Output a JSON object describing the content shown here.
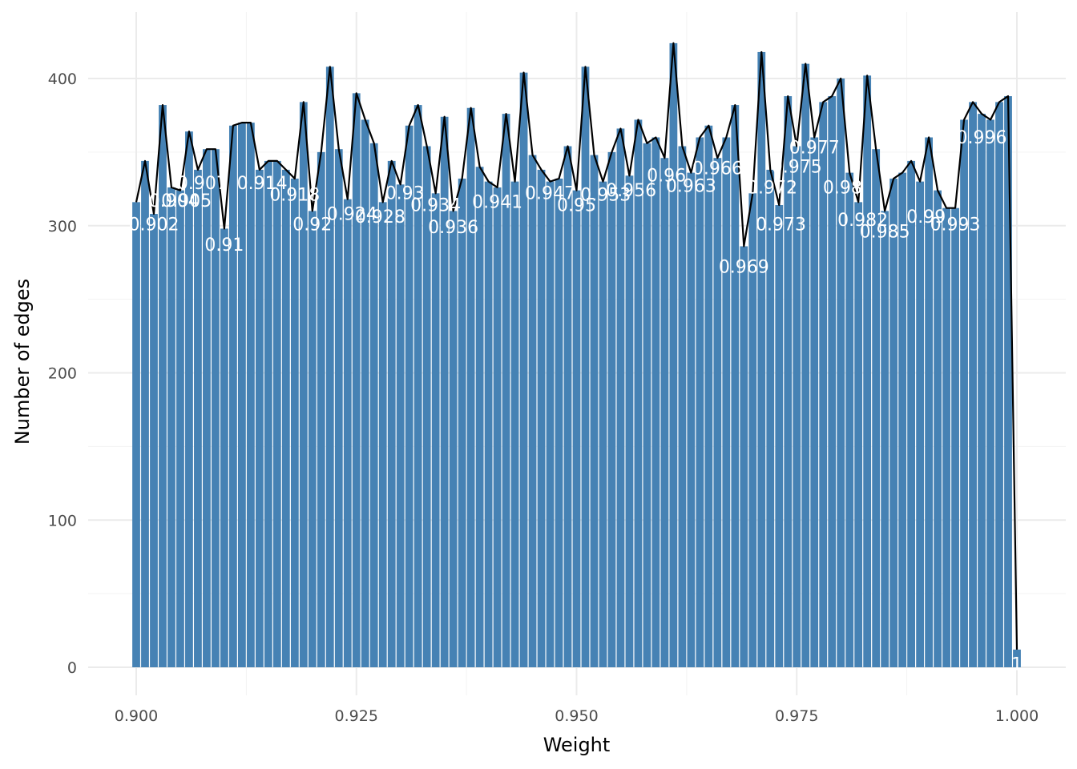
{
  "chart_data": {
    "type": "bar",
    "title": "",
    "xlabel": "Weight",
    "ylabel": "Number of edges",
    "xlim": [
      0.895,
      1.005
    ],
    "ylim": [
      0,
      430
    ],
    "x_ticks": [
      0.9,
      0.925,
      0.95,
      0.975,
      1.0
    ],
    "x_tick_labels": [
      "0.900",
      "0.925",
      "0.950",
      "0.975",
      "1.000"
    ],
    "y_ticks": [
      0,
      100,
      200,
      300,
      400
    ],
    "y_tick_labels": [
      "0",
      "100",
      "200",
      "300",
      "400"
    ],
    "grid": true,
    "legend": "none",
    "bar_color": "#4682B4",
    "line_color": "#000000",
    "label_color": "#ffffff",
    "series": [
      {
        "type": "bar",
        "x": [
          0.9,
          0.901,
          0.902,
          0.903,
          0.904,
          0.905,
          0.906,
          0.907,
          0.908,
          0.909,
          0.91,
          0.911,
          0.912,
          0.913,
          0.914,
          0.915,
          0.916,
          0.917,
          0.918,
          0.919,
          0.92,
          0.921,
          0.922,
          0.923,
          0.924,
          0.925,
          0.926,
          0.927,
          0.928,
          0.929,
          0.93,
          0.931,
          0.932,
          0.933,
          0.934,
          0.935,
          0.936,
          0.937,
          0.938,
          0.939,
          0.94,
          0.941,
          0.942,
          0.943,
          0.944,
          0.945,
          0.946,
          0.947,
          0.948,
          0.949,
          0.95,
          0.951,
          0.952,
          0.953,
          0.954,
          0.955,
          0.956,
          0.957,
          0.958,
          0.959,
          0.96,
          0.961,
          0.962,
          0.963,
          0.964,
          0.965,
          0.966,
          0.967,
          0.968,
          0.969,
          0.97,
          0.971,
          0.972,
          0.973,
          0.974,
          0.975,
          0.976,
          0.977,
          0.978,
          0.979,
          0.98,
          0.981,
          0.982,
          0.983,
          0.984,
          0.985,
          0.986,
          0.987,
          0.988,
          0.989,
          0.99,
          0.991,
          0.992,
          0.993,
          0.994,
          0.995,
          0.996,
          0.997,
          0.998,
          0.999,
          1.0
        ],
        "values": [
          316,
          344,
          308,
          382,
          326,
          324,
          364,
          338,
          352,
          352,
          298,
          368,
          370,
          370,
          338,
          344,
          344,
          338,
          332,
          384,
          310,
          350,
          408,
          352,
          318,
          390,
          372,
          356,
          316,
          344,
          328,
          368,
          382,
          354,
          322,
          374,
          310,
          332,
          380,
          340,
          330,
          326,
          376,
          330,
          404,
          348,
          338,
          330,
          332,
          354,
          324,
          408,
          348,
          330,
          350,
          366,
          334,
          372,
          356,
          360,
          346,
          424,
          354,
          336,
          360,
          368,
          346,
          360,
          382,
          286,
          322,
          418,
          338,
          314,
          388,
          354,
          410,
          360,
          384,
          388,
          400,
          336,
          316,
          402,
          352,
          310,
          332,
          336,
          344,
          330,
          360,
          324,
          312,
          312,
          372,
          384,
          376,
          372,
          384,
          388,
          12
        ]
      },
      {
        "type": "line",
        "x": [
          0.9,
          0.901,
          0.902,
          0.903,
          0.904,
          0.905,
          0.906,
          0.907,
          0.908,
          0.909,
          0.91,
          0.911,
          0.912,
          0.913,
          0.914,
          0.915,
          0.916,
          0.917,
          0.918,
          0.919,
          0.92,
          0.921,
          0.922,
          0.923,
          0.924,
          0.925,
          0.926,
          0.927,
          0.928,
          0.929,
          0.93,
          0.931,
          0.932,
          0.933,
          0.934,
          0.935,
          0.936,
          0.937,
          0.938,
          0.939,
          0.94,
          0.941,
          0.942,
          0.943,
          0.944,
          0.945,
          0.946,
          0.947,
          0.948,
          0.949,
          0.95,
          0.951,
          0.952,
          0.953,
          0.954,
          0.955,
          0.956,
          0.957,
          0.958,
          0.959,
          0.96,
          0.961,
          0.962,
          0.963,
          0.964,
          0.965,
          0.966,
          0.967,
          0.968,
          0.969,
          0.97,
          0.971,
          0.972,
          0.973,
          0.974,
          0.975,
          0.976,
          0.977,
          0.978,
          0.979,
          0.98,
          0.981,
          0.982,
          0.983,
          0.984,
          0.985,
          0.986,
          0.987,
          0.988,
          0.989,
          0.99,
          0.991,
          0.992,
          0.993,
          0.994,
          0.995,
          0.996,
          0.997,
          0.998,
          0.999,
          1.0
        ],
        "values": [
          316,
          344,
          308,
          382,
          326,
          324,
          364,
          338,
          352,
          352,
          298,
          368,
          370,
          370,
          338,
          344,
          344,
          338,
          332,
          384,
          310,
          350,
          408,
          352,
          318,
          390,
          372,
          356,
          316,
          344,
          328,
          368,
          382,
          354,
          322,
          374,
          310,
          332,
          380,
          340,
          330,
          326,
          376,
          330,
          404,
          348,
          338,
          330,
          332,
          354,
          324,
          408,
          348,
          330,
          350,
          366,
          334,
          372,
          356,
          360,
          346,
          424,
          354,
          336,
          360,
          368,
          346,
          360,
          382,
          286,
          322,
          418,
          338,
          314,
          388,
          354,
          410,
          360,
          384,
          388,
          400,
          336,
          316,
          402,
          352,
          310,
          332,
          336,
          344,
          330,
          360,
          324,
          312,
          312,
          372,
          384,
          376,
          372,
          384,
          388,
          12
        ]
      }
    ],
    "data_labels": [
      {
        "text": "0.902",
        "x": 0.902,
        "y": 297
      },
      {
        "text": "0.904",
        "x": 0.9043,
        "y": 313
      },
      {
        "text": "0.905",
        "x": 0.9057,
        "y": 313
      },
      {
        "text": "0.907",
        "x": 0.9075,
        "y": 325
      },
      {
        "text": "0.91",
        "x": 0.91,
        "y": 283
      },
      {
        "text": "0.914",
        "x": 0.9143,
        "y": 325
      },
      {
        "text": "0.918",
        "x": 0.918,
        "y": 317
      },
      {
        "text": "0.92",
        "x": 0.92,
        "y": 297
      },
      {
        "text": "0.924",
        "x": 0.9245,
        "y": 304
      },
      {
        "text": "0.928",
        "x": 0.9277,
        "y": 302
      },
      {
        "text": "0.93",
        "x": 0.9305,
        "y": 318
      },
      {
        "text": "0.934",
        "x": 0.934,
        "y": 310
      },
      {
        "text": "0.936",
        "x": 0.936,
        "y": 295
      },
      {
        "text": "0.941",
        "x": 0.941,
        "y": 312
      },
      {
        "text": "0.947",
        "x": 0.947,
        "y": 318
      },
      {
        "text": "0.95",
        "x": 0.95,
        "y": 310
      },
      {
        "text": "0.953",
        "x": 0.9533,
        "y": 317
      },
      {
        "text": "0.956",
        "x": 0.9562,
        "y": 320
      },
      {
        "text": "0.96",
        "x": 0.9602,
        "y": 330
      },
      {
        "text": "0.963",
        "x": 0.963,
        "y": 323
      },
      {
        "text": "0.966",
        "x": 0.966,
        "y": 335
      },
      {
        "text": "0.969",
        "x": 0.969,
        "y": 268
      },
      {
        "text": "0.972",
        "x": 0.9722,
        "y": 322
      },
      {
        "text": "0.973",
        "x": 0.9732,
        "y": 297
      },
      {
        "text": "0.975",
        "x": 0.975,
        "y": 336
      },
      {
        "text": "0.977",
        "x": 0.977,
        "y": 349
      },
      {
        "text": "0.98",
        "x": 0.9802,
        "y": 322
      },
      {
        "text": "0.982",
        "x": 0.9825,
        "y": 300
      },
      {
        "text": "0.985",
        "x": 0.985,
        "y": 292
      },
      {
        "text": "0.99",
        "x": 0.9897,
        "y": 302
      },
      {
        "text": "0.993",
        "x": 0.993,
        "y": 297
      },
      {
        "text": "0.996",
        "x": 0.996,
        "y": 356
      },
      {
        "text": "1",
        "x": 1.0,
        "y": -2
      }
    ]
  }
}
